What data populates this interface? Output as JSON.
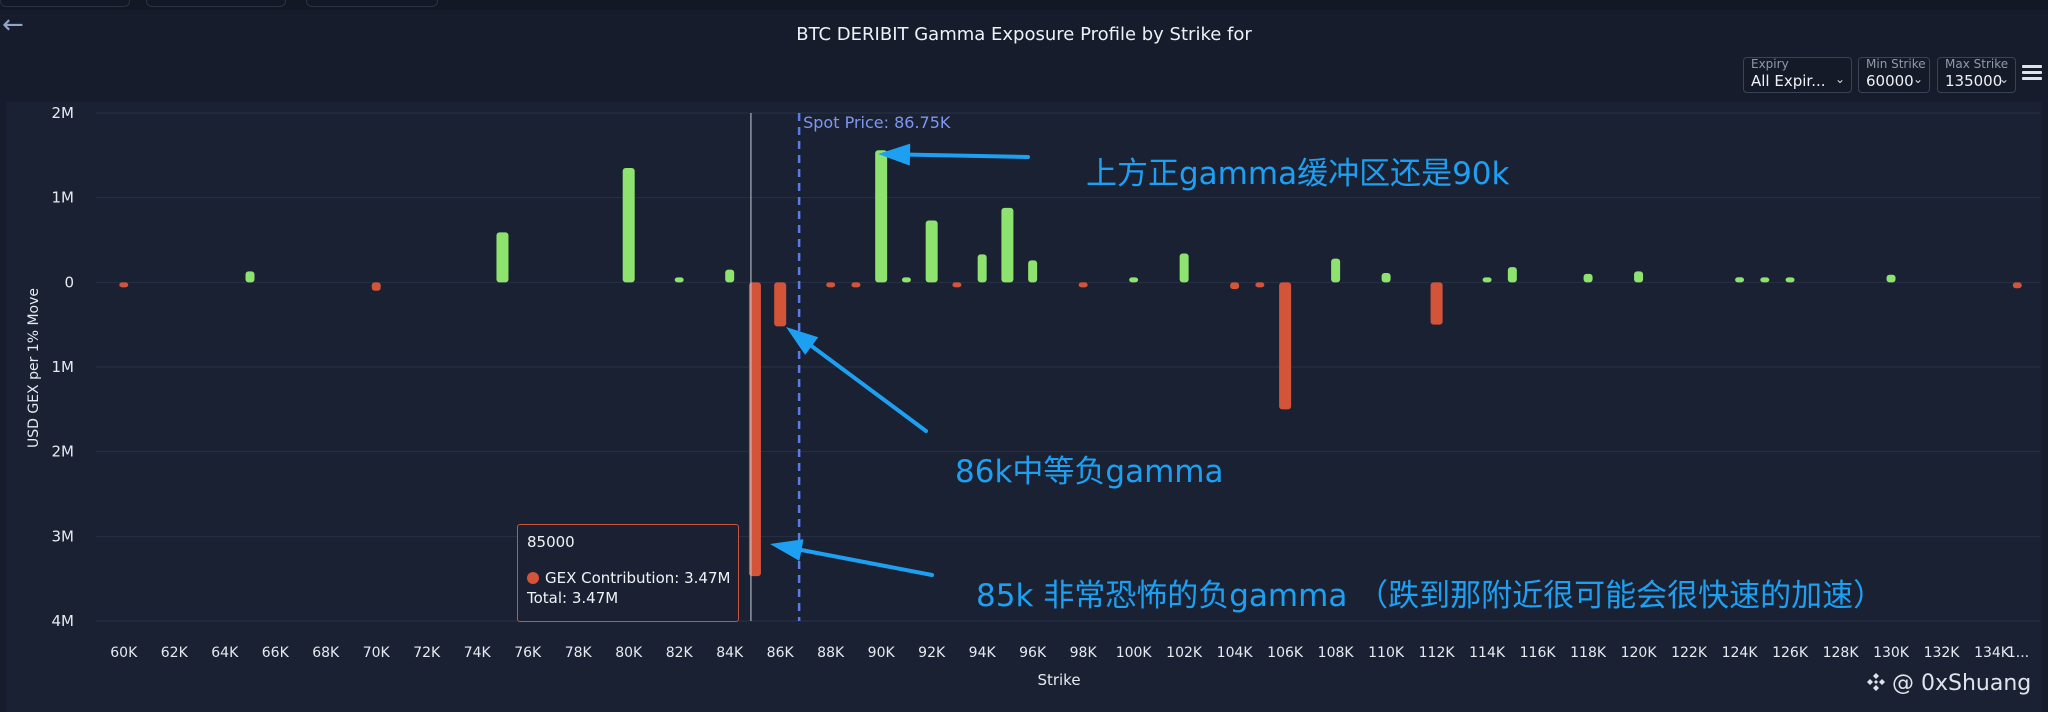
{
  "colors": {
    "positive": "#8ee26e",
    "negative": "#d4543a",
    "spot": "#5a7be8",
    "annotation": "#1ea0f2",
    "hover": "#c9ced8"
  },
  "title": "BTC DERIBIT Gamma Exposure Profile by Strike for",
  "controls": {
    "expiry": {
      "label": "Expiry",
      "value": "All Expir..."
    },
    "min_strike": {
      "label": "Min Strike",
      "value": "60000"
    },
    "max_strike": {
      "label": "Max Strike",
      "value": "135000"
    }
  },
  "chart_data": {
    "type": "bar",
    "title": "BTC DERIBIT Gamma Exposure Profile by Strike for",
    "xlabel": "Strike",
    "ylabel": "USD GEX per 1% Move",
    "xlim": [
      58900,
      135900
    ],
    "ylim": [
      -4000000,
      2000000
    ],
    "x_tick_values": [
      60000,
      62000,
      64000,
      66000,
      68000,
      70000,
      72000,
      74000,
      76000,
      78000,
      80000,
      82000,
      84000,
      86000,
      88000,
      90000,
      92000,
      94000,
      96000,
      98000,
      100000,
      102000,
      104000,
      106000,
      108000,
      110000,
      112000,
      114000,
      116000,
      118000,
      120000,
      122000,
      124000,
      126000,
      128000,
      130000,
      132000,
      134000
    ],
    "x_tick_labels": [
      "60K",
      "62K",
      "64K",
      "66K",
      "68K",
      "70K",
      "72K",
      "74K",
      "76K",
      "78K",
      "80K",
      "82K",
      "84K",
      "86K",
      "88K",
      "90K",
      "92K",
      "94K",
      "96K",
      "98K",
      "100K",
      "102K",
      "104K",
      "106K",
      "108K",
      "110K",
      "112K",
      "114K",
      "116K",
      "118K",
      "120K",
      "122K",
      "124K",
      "126K",
      "128K",
      "130K",
      "132K",
      "134K"
    ],
    "x_overflow_label": "1...",
    "y_tick_values": [
      2000000,
      1000000,
      0,
      -1000000,
      -2000000,
      -3000000,
      -4000000
    ],
    "y_tick_labels": [
      "2M",
      "1M",
      "0",
      "1M",
      "2M",
      "3M",
      "4M"
    ],
    "spot_price": 86750,
    "spot_label": "Spot Price: 86.75K",
    "hovered_strike": 85000,
    "series": [
      {
        "name": "GEX Contribution",
        "strikes": [
          60000,
          65000,
          70000,
          75000,
          80000,
          82000,
          84000,
          85000,
          86000,
          88000,
          89000,
          90000,
          91000,
          92000,
          93000,
          94000,
          95000,
          96000,
          98000,
          100000,
          102000,
          104000,
          105000,
          106000,
          108000,
          110000,
          112000,
          114000,
          115000,
          118000,
          120000,
          124000,
          125000,
          126000,
          130000,
          135000
        ],
        "values": [
          -30000,
          130000,
          -100000,
          590000,
          1350000,
          20000,
          150000,
          -3470000,
          -520000,
          -50000,
          -50000,
          1560000,
          30000,
          730000,
          -20000,
          330000,
          880000,
          260000,
          -20000,
          30000,
          340000,
          -80000,
          -20000,
          -1500000,
          280000,
          110000,
          -500000,
          50000,
          180000,
          100000,
          130000,
          60000,
          50000,
          50000,
          90000,
          -70000
        ]
      }
    ]
  },
  "tooltip": {
    "strike": "85000",
    "gex_line": "GEX Contribution: 3.47M",
    "total_line": "Total: 3.47M"
  },
  "annotations": {
    "a1": "上方正gamma缓冲区还是90k",
    "a2": "86k中等负gamma",
    "a3": "85k 非常恐怖的负gamma  （跌到那附近很可能会很快速的加速）"
  },
  "watermark": "@ 0xShuang"
}
